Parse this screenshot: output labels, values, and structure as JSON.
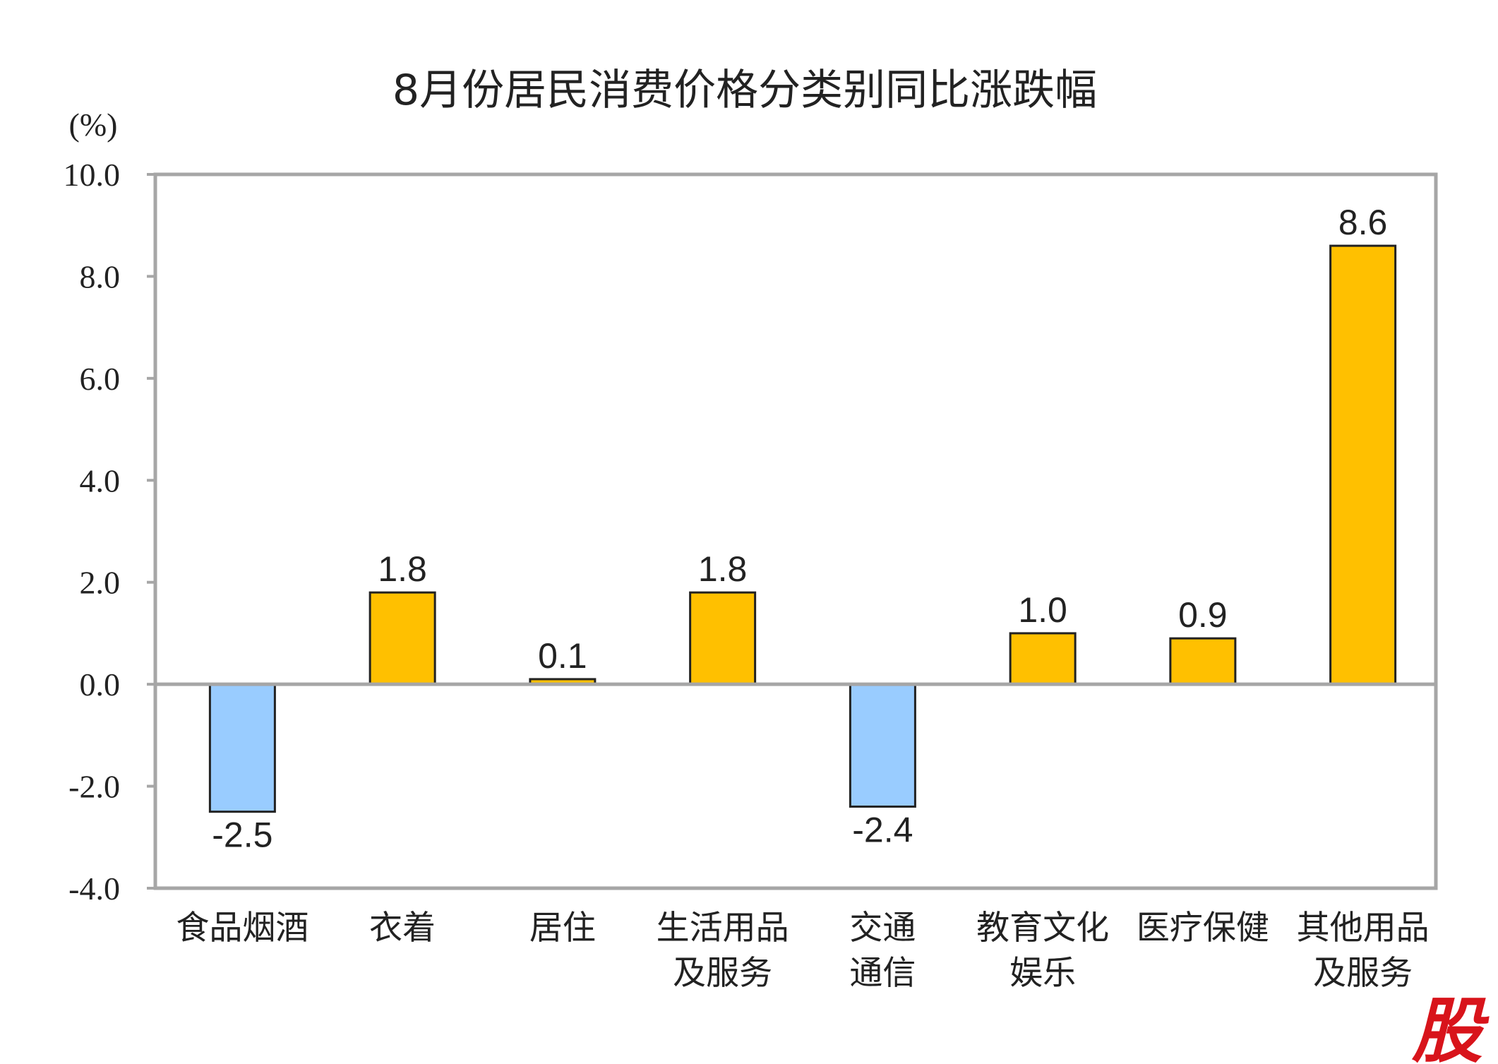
{
  "chart_data": {
    "type": "bar",
    "title": "8月份居民消费价格分类别同比涨跌幅",
    "unit_label": "(%)",
    "ylim": [
      -4.0,
      10.0
    ],
    "yticks": [
      "10.0",
      "8.0",
      "6.0",
      "4.0",
      "2.0",
      "0.0",
      "-2.0",
      "-4.0"
    ],
    "categories": [
      [
        "食品烟酒"
      ],
      [
        "衣着"
      ],
      [
        "居住"
      ],
      [
        "生活用品",
        "及服务"
      ],
      [
        "交通",
        "通信"
      ],
      [
        "教育文化",
        "娱乐"
      ],
      [
        "医疗保健"
      ],
      [
        "其他用品",
        "及服务"
      ]
    ],
    "values": [
      -2.5,
      1.8,
      0.1,
      1.8,
      -2.4,
      1.0,
      0.9,
      8.6
    ],
    "data_labels": [
      "-2.5",
      "1.8",
      "0.1",
      "1.8",
      "-2.4",
      "1.0",
      "0.9",
      "8.6"
    ],
    "colors": {
      "positive": "#FFC000",
      "negative": "#99CCFF",
      "bar_border": "#222222",
      "frame": "#a6a6a6"
    },
    "grid": false,
    "legend": "none"
  },
  "watermark_text": "股"
}
